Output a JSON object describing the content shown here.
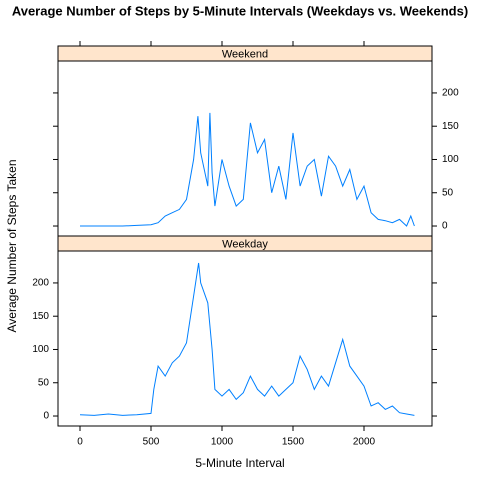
{
  "chart_data": {
    "type": "line",
    "title": "Average Number of Steps by 5-Minute Intervals (Weekdays vs. Weekends)",
    "xlabel": "5-Minute Interval",
    "ylabel": "Average Number of Steps Taken",
    "color": "#0080ff",
    "strip_color": "#ffe5cc",
    "xlim": [
      -155,
      2479
    ],
    "xticks": [
      0,
      500,
      1000,
      1500,
      2000
    ],
    "ylim": [
      -15,
      248
    ],
    "yticks": [
      0,
      50,
      100,
      150,
      200
    ],
    "series": [
      {
        "name": "Weekend",
        "x": [
          0,
          100,
          200,
          300,
          400,
          500,
          550,
          600,
          650,
          700,
          750,
          800,
          830,
          850,
          900,
          915,
          930,
          950,
          1000,
          1050,
          1100,
          1150,
          1200,
          1250,
          1300,
          1350,
          1400,
          1450,
          1500,
          1550,
          1600,
          1650,
          1700,
          1750,
          1800,
          1850,
          1900,
          1950,
          2000,
          2050,
          2100,
          2150,
          2200,
          2250,
          2300,
          2330,
          2355
        ],
        "values": [
          0,
          0,
          0,
          0,
          1,
          2,
          5,
          15,
          20,
          25,
          40,
          100,
          165,
          110,
          60,
          170,
          80,
          30,
          100,
          60,
          30,
          40,
          155,
          110,
          130,
          50,
          90,
          40,
          140,
          60,
          90,
          100,
          45,
          105,
          90,
          60,
          85,
          40,
          60,
          20,
          10,
          8,
          5,
          10,
          0,
          15,
          0
        ]
      },
      {
        "name": "Weekday",
        "x": [
          0,
          100,
          200,
          300,
          400,
          500,
          520,
          550,
          600,
          650,
          700,
          750,
          800,
          835,
          850,
          900,
          930,
          950,
          1000,
          1050,
          1100,
          1150,
          1200,
          1250,
          1300,
          1350,
          1400,
          1450,
          1500,
          1550,
          1600,
          1650,
          1700,
          1750,
          1800,
          1850,
          1900,
          1950,
          2000,
          2050,
          2100,
          2150,
          2200,
          2250,
          2300,
          2355
        ],
        "values": [
          2,
          1,
          3,
          1,
          2,
          4,
          40,
          75,
          60,
          80,
          90,
          110,
          180,
          230,
          200,
          170,
          100,
          40,
          30,
          40,
          25,
          35,
          60,
          40,
          30,
          45,
          30,
          40,
          50,
          90,
          70,
          40,
          60,
          45,
          80,
          115,
          75,
          60,
          45,
          15,
          20,
          10,
          15,
          5,
          3,
          1
        ]
      }
    ]
  }
}
